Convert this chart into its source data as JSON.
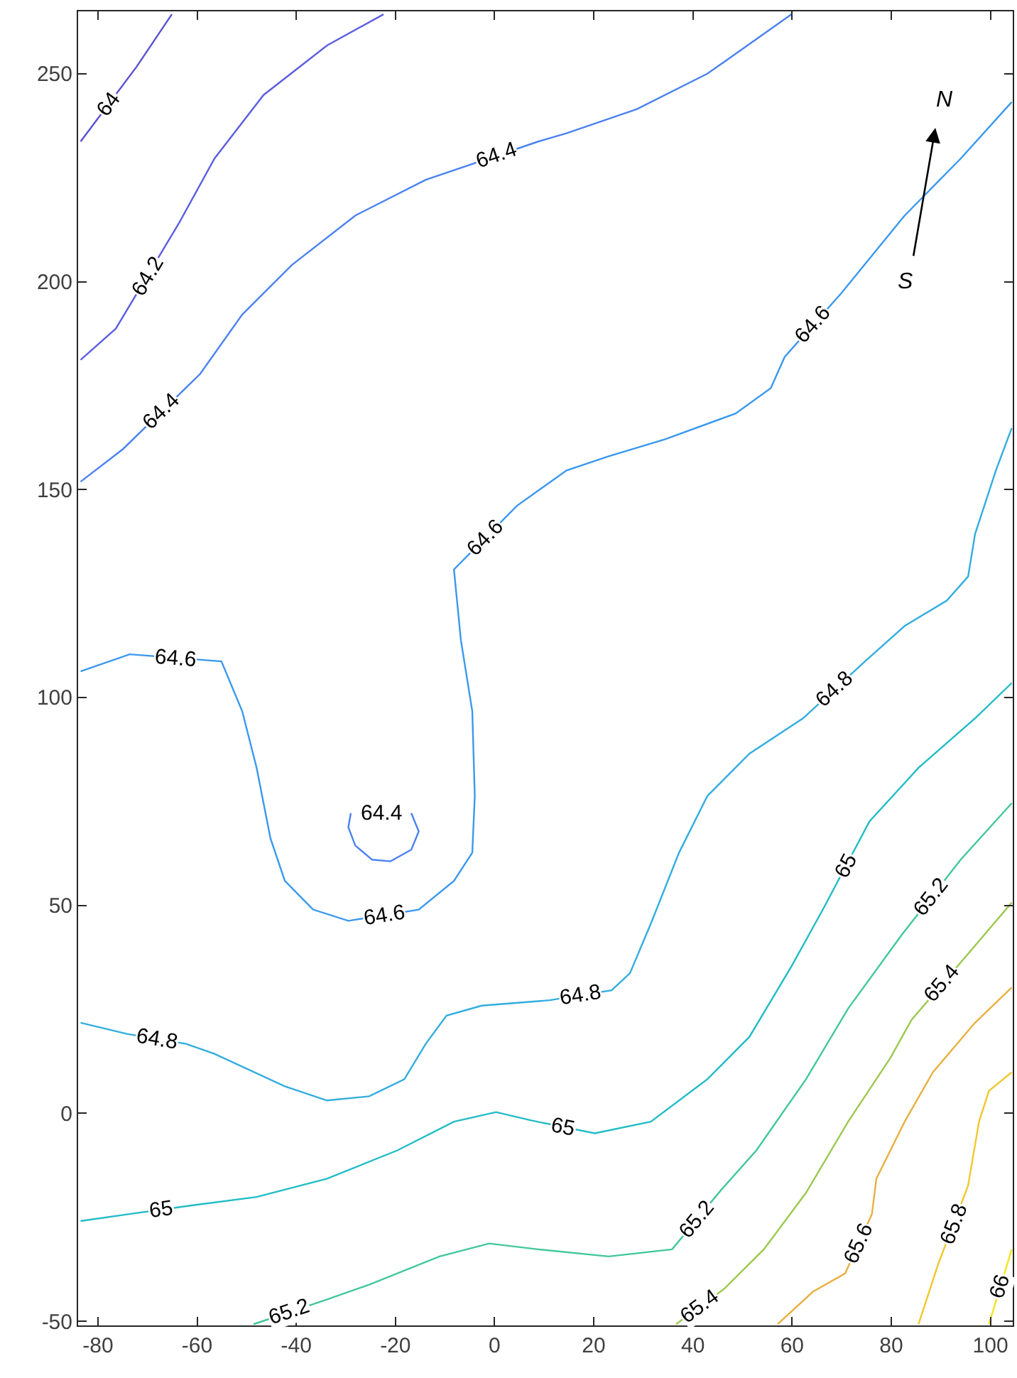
{
  "chart_data": {
    "type": "line",
    "xlim": [
      -84,
      104.5
    ],
    "ylim": [
      -51,
      265
    ],
    "xticks": [
      -80,
      -60,
      -40,
      -20,
      0,
      20,
      40,
      60,
      80,
      100
    ],
    "yticks": [
      -50,
      0,
      50,
      100,
      150,
      200,
      250
    ],
    "grid": false,
    "legend": false,
    "marker": "none",
    "line_style": "solid",
    "annotations": [
      "N",
      "S"
    ],
    "series": [
      {
        "name": "64",
        "color": "#5a4fcf",
        "x": [
          -83.5,
          -72.2,
          -65.1
        ],
        "values": [
          233.7,
          251.7,
          264.3
        ]
      },
      {
        "name": "64.2",
        "color": "#5c5fe0",
        "x": [
          -83.5,
          -76.4,
          -63.6,
          -56.5,
          -46.6,
          -33.8,
          -22.4
        ],
        "values": [
          181.2,
          188.7,
          214.2,
          229.6,
          244.9,
          256.8,
          264.3
        ]
      },
      {
        "name": "64.4",
        "color": "#4a82f0",
        "x": [
          -83.5,
          -75.0,
          -59.4,
          -50.9,
          -40.9,
          -28.1,
          -13.9,
          -8.2,
          8.8,
          14.5,
          28.7,
          42.9,
          59.9
        ],
        "values": [
          151.9,
          159.7,
          177.8,
          192.1,
          204.0,
          215.9,
          224.5,
          226.8,
          233.7,
          235.7,
          241.5,
          250.0,
          264.3
        ]
      },
      {
        "name": "64.4",
        "color": "#4a82f0",
        "x": [
          -29.0,
          -29.5,
          -28.1,
          -24.7,
          -21.0,
          -16.8,
          -15.3,
          -16.8
        ],
        "values": [
          72.2,
          68.8,
          64.4,
          61.0,
          60.6,
          63.4,
          67.8,
          72.2
        ]
      },
      {
        "name": "64.6",
        "color": "#3a98ee",
        "x": [
          -83.5,
          -73.6,
          -55.1,
          -50.9,
          -48.0,
          -45.2,
          -42.3,
          -36.6,
          -29.5,
          -15.3,
          -8.2,
          -4.5,
          -4.0,
          -4.5,
          -6.8,
          -8.2,
          4.5,
          14.5,
          23.0,
          34.4,
          48.6,
          55.7,
          58.5,
          69.9,
          82.7,
          94.0,
          104.3
        ],
        "values": [
          106.3,
          110.4,
          108.7,
          96.7,
          83.1,
          66.1,
          55.9,
          49.0,
          46.3,
          49.0,
          55.9,
          62.7,
          76.3,
          96.7,
          113.8,
          130.8,
          146.1,
          154.6,
          158.0,
          162.1,
          168.3,
          174.4,
          181.9,
          197.2,
          215.9,
          229.6,
          243.2
        ]
      },
      {
        "name": "64.8",
        "color": "#32addf",
        "x": [
          104.3,
          101.1,
          96.9,
          95.5,
          91.2,
          82.7,
          74.7,
          62.2,
          51.4,
          42.9,
          37.2,
          31.5,
          27.3,
          23.6,
          11.1,
          -2.6,
          -9.7,
          -13.9,
          -18.2,
          -25.3,
          -33.8,
          -42.3,
          -56.5,
          -62.2,
          -74.1,
          -83.5
        ],
        "values": [
          164.8,
          154.6,
          139.3,
          129.1,
          123.3,
          117.2,
          108.7,
          95.0,
          86.5,
          76.3,
          62.7,
          45.6,
          33.7,
          29.6,
          27.2,
          25.9,
          23.5,
          16.7,
          8.2,
          4.1,
          3.1,
          6.5,
          14.3,
          16.7,
          19.1,
          21.8
        ]
      },
      {
        "name": "65",
        "color": "#22bcc6",
        "x": [
          104.3,
          96.9,
          85.5,
          75.6,
          66.2,
          59.9,
          51.4,
          42.9,
          31.5,
          20.2,
          7.4,
          0.3,
          -8.2,
          -19.6,
          -33.8,
          -48.0,
          -60.8,
          -73.6,
          -83.5
        ],
        "values": [
          103.5,
          95.0,
          83.1,
          70.2,
          49.0,
          35.4,
          18.4,
          8.2,
          -2.0,
          -4.8,
          -1.7,
          0.3,
          -2.0,
          -8.9,
          -15.7,
          -20.1,
          -22.1,
          -24.2,
          -25.9
        ]
      },
      {
        "name": "65.2",
        "color": "#42c79c",
        "x": [
          104.3,
          94.0,
          82.1,
          71.3,
          62.8,
          52.8,
          45.7,
          35.8,
          23.0,
          8.8,
          -1.1,
          -11.1,
          -25.3,
          -34.4,
          -48.6
        ],
        "values": [
          74.6,
          61.0,
          42.9,
          25.2,
          8.2,
          -8.9,
          -18.4,
          -32.7,
          -34.4,
          -32.7,
          -31.3,
          -34.4,
          -41.2,
          -45.0,
          -50.7
        ]
      },
      {
        "name": "65.4",
        "color": "#9cc850",
        "x": [
          104.3,
          96.3,
          84.1,
          79.8,
          71.3,
          62.8,
          54.3,
          46.3,
          36.6
        ],
        "values": [
          50.7,
          39.5,
          22.5,
          13.3,
          -2.0,
          -19.1,
          -32.7,
          -42.2,
          -50.7
        ]
      },
      {
        "name": "65.6",
        "color": "#e8b040",
        "x": [
          104.3,
          96.9,
          88.4,
          82.7,
          77.0,
          76.1,
          70.7,
          64.2,
          57.1
        ],
        "values": [
          30.3,
          21.8,
          9.9,
          -2.0,
          -15.7,
          -24.2,
          -38.5,
          -42.9,
          -50.7
        ]
      },
      {
        "name": "65.8",
        "color": "#f0c830",
        "x": [
          104.3,
          99.7,
          97.7,
          95.5,
          89.5,
          85.5
        ],
        "values": [
          9.9,
          5.4,
          -2.0,
          -17.4,
          -36.1,
          -50.7
        ]
      },
      {
        "name": "66",
        "color": "#f5e41e",
        "x": [
          104.3,
          99.7
        ],
        "values": [
          -32.7,
          -50.7
        ]
      }
    ]
  }
}
